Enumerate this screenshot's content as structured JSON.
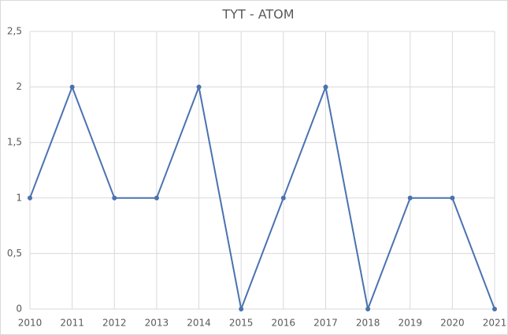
{
  "chart_data": {
    "type": "line",
    "title": "TYT - ATOM",
    "x": [
      2010,
      2011,
      2012,
      2013,
      2014,
      2015,
      2016,
      2017,
      2018,
      2019,
      2020,
      2021
    ],
    "xlim": [
      2010,
      2021
    ],
    "xticks": [
      2010,
      2011,
      2012,
      2013,
      2014,
      2015,
      2016,
      2017,
      2018,
      2019,
      2020,
      2021
    ],
    "series": [
      {
        "name": "ATOM",
        "color": "#4a72b0",
        "values": [
          1,
          2,
          1,
          1,
          2,
          0,
          1,
          2,
          0,
          1,
          1,
          0
        ]
      }
    ],
    "ylim": [
      0,
      2.5
    ],
    "yticks": [
      0,
      {
        "value": 0.5,
        "label": "0,5"
      },
      1,
      {
        "value": 1.5,
        "label": "1,5"
      },
      2,
      {
        "value": 2.5,
        "label": "2,5"
      }
    ],
    "grid": true
  }
}
